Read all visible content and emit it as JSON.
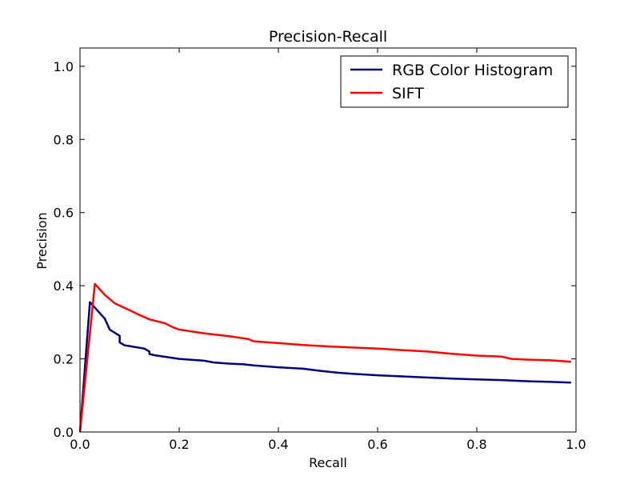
{
  "chart_data": {
    "type": "line",
    "title": "Precision-Recall",
    "xlabel": "Recall",
    "ylabel": "Precision",
    "xlim": [
      0.0,
      1.0
    ],
    "ylim": [
      0.0,
      1.05
    ],
    "xticks": [
      0.0,
      0.2,
      0.4,
      0.6,
      0.8,
      1.0
    ],
    "yticks": [
      0.0,
      0.2,
      0.4,
      0.6,
      0.8,
      1.0
    ],
    "xtick_labels": [
      "0.0",
      "0.2",
      "0.4",
      "0.6",
      "0.8",
      "1.0"
    ],
    "ytick_labels": [
      "0.0",
      "0.2",
      "0.4",
      "0.6",
      "0.8",
      "1.0"
    ],
    "grid": false,
    "legend_position": "top-right",
    "series": [
      {
        "name": "RGB Color Histogram",
        "color": "#00007f",
        "points": [
          [
            0.0,
            0.0
          ],
          [
            0.02,
            0.355
          ],
          [
            0.03,
            0.34
          ],
          [
            0.05,
            0.31
          ],
          [
            0.06,
            0.28
          ],
          [
            0.08,
            0.263
          ],
          [
            0.08,
            0.245
          ],
          [
            0.09,
            0.237
          ],
          [
            0.1,
            0.235
          ],
          [
            0.13,
            0.228
          ],
          [
            0.14,
            0.22
          ],
          [
            0.14,
            0.213
          ],
          [
            0.15,
            0.21
          ],
          [
            0.2,
            0.2
          ],
          [
            0.25,
            0.195
          ],
          [
            0.27,
            0.19
          ],
          [
            0.3,
            0.187
          ],
          [
            0.33,
            0.185
          ],
          [
            0.35,
            0.182
          ],
          [
            0.4,
            0.177
          ],
          [
            0.45,
            0.173
          ],
          [
            0.48,
            0.168
          ],
          [
            0.5,
            0.165
          ],
          [
            0.52,
            0.162
          ],
          [
            0.55,
            0.159
          ],
          [
            0.6,
            0.155
          ],
          [
            0.65,
            0.152
          ],
          [
            0.7,
            0.149
          ],
          [
            0.75,
            0.146
          ],
          [
            0.8,
            0.144
          ],
          [
            0.85,
            0.142
          ],
          [
            0.9,
            0.139
          ],
          [
            0.95,
            0.137
          ],
          [
            0.99,
            0.135
          ]
        ]
      },
      {
        "name": "SIFT",
        "color": "#ff0000",
        "points": [
          [
            0.0,
            0.0
          ],
          [
            0.03,
            0.405
          ],
          [
            0.04,
            0.39
          ],
          [
            0.05,
            0.375
          ],
          [
            0.07,
            0.352
          ],
          [
            0.1,
            0.333
          ],
          [
            0.12,
            0.32
          ],
          [
            0.14,
            0.308
          ],
          [
            0.17,
            0.298
          ],
          [
            0.19,
            0.285
          ],
          [
            0.2,
            0.28
          ],
          [
            0.25,
            0.27
          ],
          [
            0.3,
            0.262
          ],
          [
            0.34,
            0.254
          ],
          [
            0.35,
            0.248
          ],
          [
            0.4,
            0.243
          ],
          [
            0.45,
            0.238
          ],
          [
            0.5,
            0.234
          ],
          [
            0.55,
            0.231
          ],
          [
            0.6,
            0.228
          ],
          [
            0.65,
            0.224
          ],
          [
            0.7,
            0.22
          ],
          [
            0.75,
            0.214
          ],
          [
            0.8,
            0.209
          ],
          [
            0.85,
            0.206
          ],
          [
            0.87,
            0.2
          ],
          [
            0.9,
            0.198
          ],
          [
            0.95,
            0.196
          ],
          [
            0.99,
            0.192
          ]
        ]
      }
    ]
  }
}
